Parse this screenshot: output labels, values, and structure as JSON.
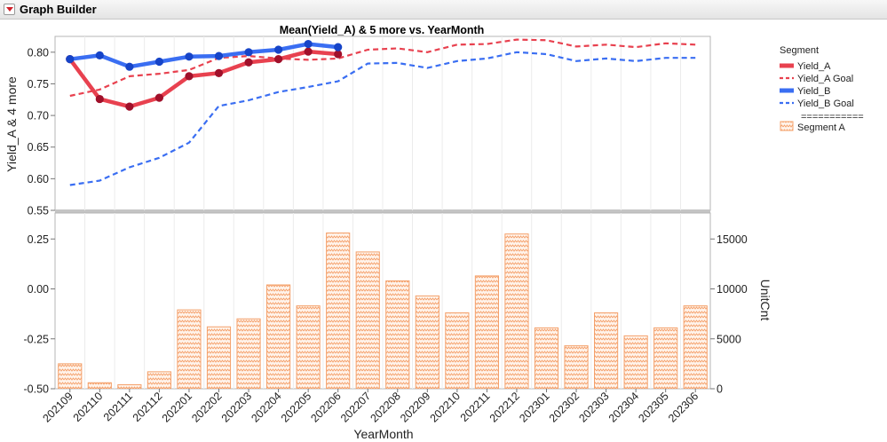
{
  "window": {
    "title": "Graph Builder"
  },
  "chart_data": {
    "type": "line",
    "title": "Mean(Yield_A) & 5 more vs. YearMonth",
    "xlabel": "YearMonth",
    "categories": [
      "202109",
      "202110",
      "202111",
      "202112",
      "202201",
      "202202",
      "202203",
      "202204",
      "202205",
      "202206",
      "202207",
      "202208",
      "202209",
      "202210",
      "202211",
      "202212",
      "202301",
      "202302",
      "202303",
      "202304",
      "202305",
      "202306"
    ],
    "top_panel": {
      "ylabel": "Yield_A & 4 more",
      "ylim": [
        0.55,
        0.825
      ],
      "yticks": [
        "0.80",
        "0.75",
        "0.70",
        "0.65",
        "0.60",
        "0.55"
      ],
      "ytick_values": [
        0.8,
        0.75,
        0.7,
        0.65,
        0.6,
        0.55
      ],
      "series": [
        {
          "name": "Yield_A",
          "style": "solid-markers",
          "color": "#e8414f",
          "marker_color": "#a0102a",
          "values": [
            0.789,
            0.726,
            0.714,
            0.728,
            0.762,
            0.767,
            0.784,
            0.789,
            0.801,
            0.797,
            null,
            null,
            null,
            null,
            null,
            null,
            null,
            null,
            null,
            null,
            null,
            null
          ]
        },
        {
          "name": "Yield_A Goal",
          "style": "dashed",
          "color": "#e8414f",
          "values": [
            0.731,
            0.741,
            0.762,
            0.766,
            0.772,
            0.791,
            0.794,
            0.79,
            0.788,
            0.79,
            0.804,
            0.806,
            0.8,
            0.812,
            0.813,
            0.82,
            0.819,
            0.809,
            0.812,
            0.808,
            0.814,
            0.812
          ]
        },
        {
          "name": "Yield_B",
          "style": "solid-markers",
          "color": "#3a6ef2",
          "marker_color": "#1644c8",
          "values": [
            0.789,
            0.795,
            0.777,
            0.785,
            0.793,
            0.794,
            0.8,
            0.804,
            0.813,
            0.808,
            null,
            null,
            null,
            null,
            null,
            null,
            null,
            null,
            null,
            null,
            null,
            null
          ]
        },
        {
          "name": "Yield_B Goal",
          "style": "dashed",
          "color": "#3a6ef2",
          "values": [
            0.59,
            0.597,
            0.618,
            0.633,
            0.657,
            0.715,
            0.724,
            0.737,
            0.745,
            0.754,
            0.782,
            0.783,
            0.775,
            0.786,
            0.79,
            0.8,
            0.797,
            0.786,
            0.79,
            0.786,
            0.791,
            0.791
          ]
        }
      ]
    },
    "bottom_panel": {
      "left_yticks": [
        "0.25",
        "0.00",
        "-0.25",
        "-0.50"
      ],
      "left_ytick_values": [
        0.25,
        0.0,
        -0.25,
        -0.5
      ],
      "left_ylim": [
        -0.5,
        0.38
      ],
      "right_ylabel": "UnitCnt",
      "right_yticks": [
        "15000",
        "10000",
        "5000",
        "0"
      ],
      "right_ytick_values": [
        15000,
        10000,
        5000,
        0
      ],
      "right_ylim": [
        0,
        17600
      ],
      "bar_series": {
        "name": "Segment A",
        "color": "#f4a06a",
        "values": [
          2500,
          600,
          400,
          1700,
          7900,
          6200,
          7000,
          10400,
          8300,
          15600,
          13700,
          10800,
          9300,
          7600,
          11300,
          15500,
          6100,
          4300,
          7600,
          5300,
          6100,
          8300
        ]
      }
    },
    "legend": {
      "title": "Segment",
      "position": "right",
      "separator": "===========",
      "items": [
        {
          "label": "Yield_A",
          "style": "solid",
          "color": "#e8414f"
        },
        {
          "label": "Yield_A Goal",
          "style": "dashed",
          "color": "#e8414f"
        },
        {
          "label": "Yield_B",
          "style": "solid",
          "color": "#3a6ef2"
        },
        {
          "label": "Yield_B Goal",
          "style": "dashed",
          "color": "#3a6ef2"
        },
        {
          "label": "Segment A",
          "style": "bar",
          "color": "#f4a06a"
        }
      ]
    }
  }
}
